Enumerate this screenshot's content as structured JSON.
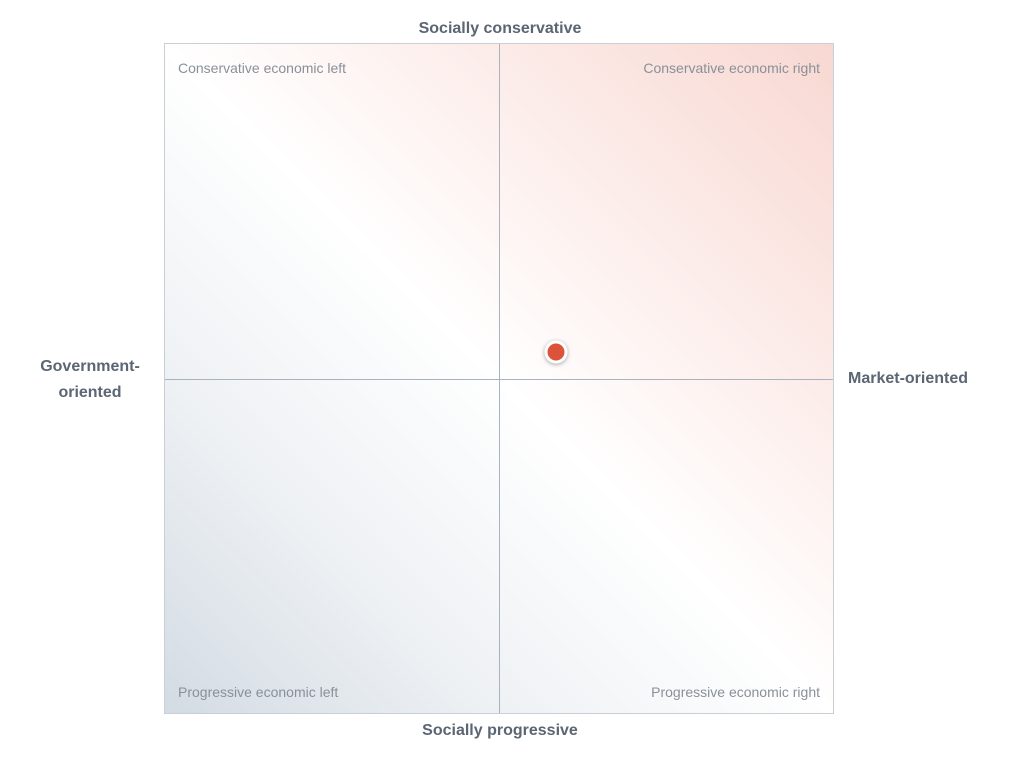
{
  "axes": {
    "top": "Socially conservative",
    "bottom": "Socially progressive",
    "left": "Government-\noriented",
    "right": "Market-oriented"
  },
  "quadrants": {
    "top_left": "Conservative economic left",
    "top_right": "Conservative economic right",
    "bottom_left": "Progressive economic left",
    "bottom_right": "Progressive economic right"
  },
  "position": {
    "economic": 0.17,
    "social": 0.08,
    "range": [
      -1,
      1
    ]
  },
  "colors": {
    "marker": "#dd5339",
    "conservative_right_tint": "#f8d8d2",
    "progressive_left_tint": "#d3dbe3"
  }
}
